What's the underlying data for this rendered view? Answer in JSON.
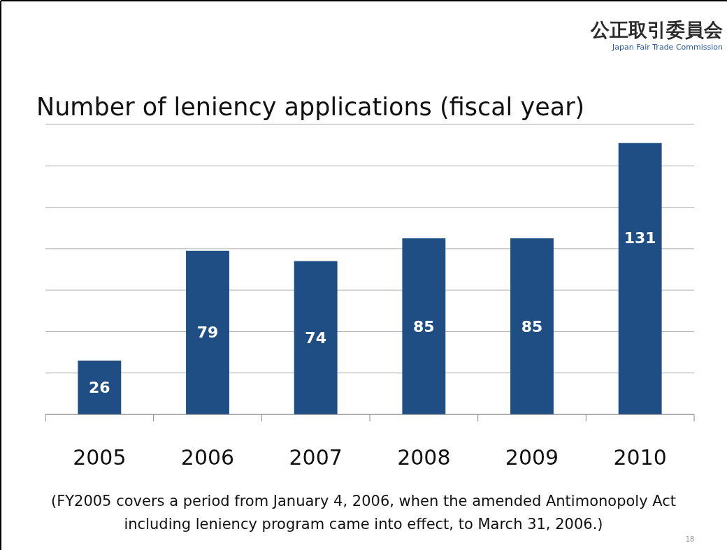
{
  "chart_data": {
    "type": "bar",
    "title": "Number of leniency applications (fiscal year)",
    "categories": [
      "2005",
      "2006",
      "2007",
      "2008",
      "2009",
      "2010"
    ],
    "values": [
      26,
      79,
      74,
      85,
      85,
      131
    ],
    "color": "#1f4e85",
    "ylim": [
      0,
      140
    ],
    "yticks": [
      {
        "value": 0,
        "label": null
      },
      {
        "value": 20,
        "label": null
      },
      {
        "value": 40,
        "label": null
      },
      {
        "value": 60,
        "label": null
      },
      {
        "value": 80,
        "label": null
      },
      {
        "value": 100,
        "label": null
      },
      {
        "value": 120,
        "label": null
      },
      {
        "value": 140,
        "label": null
      }
    ],
    "tick_labels": "x",
    "grid": "y",
    "data_labels": true,
    "annotations": [
      "公正取引委員会",
      "Japan Fair Trade Commission",
      "(FY2005 covers a period from January 4, 2006, when the amended Antimonopoly Act including leniency program came into effect, to March 31, 2006.)",
      "18"
    ]
  }
}
